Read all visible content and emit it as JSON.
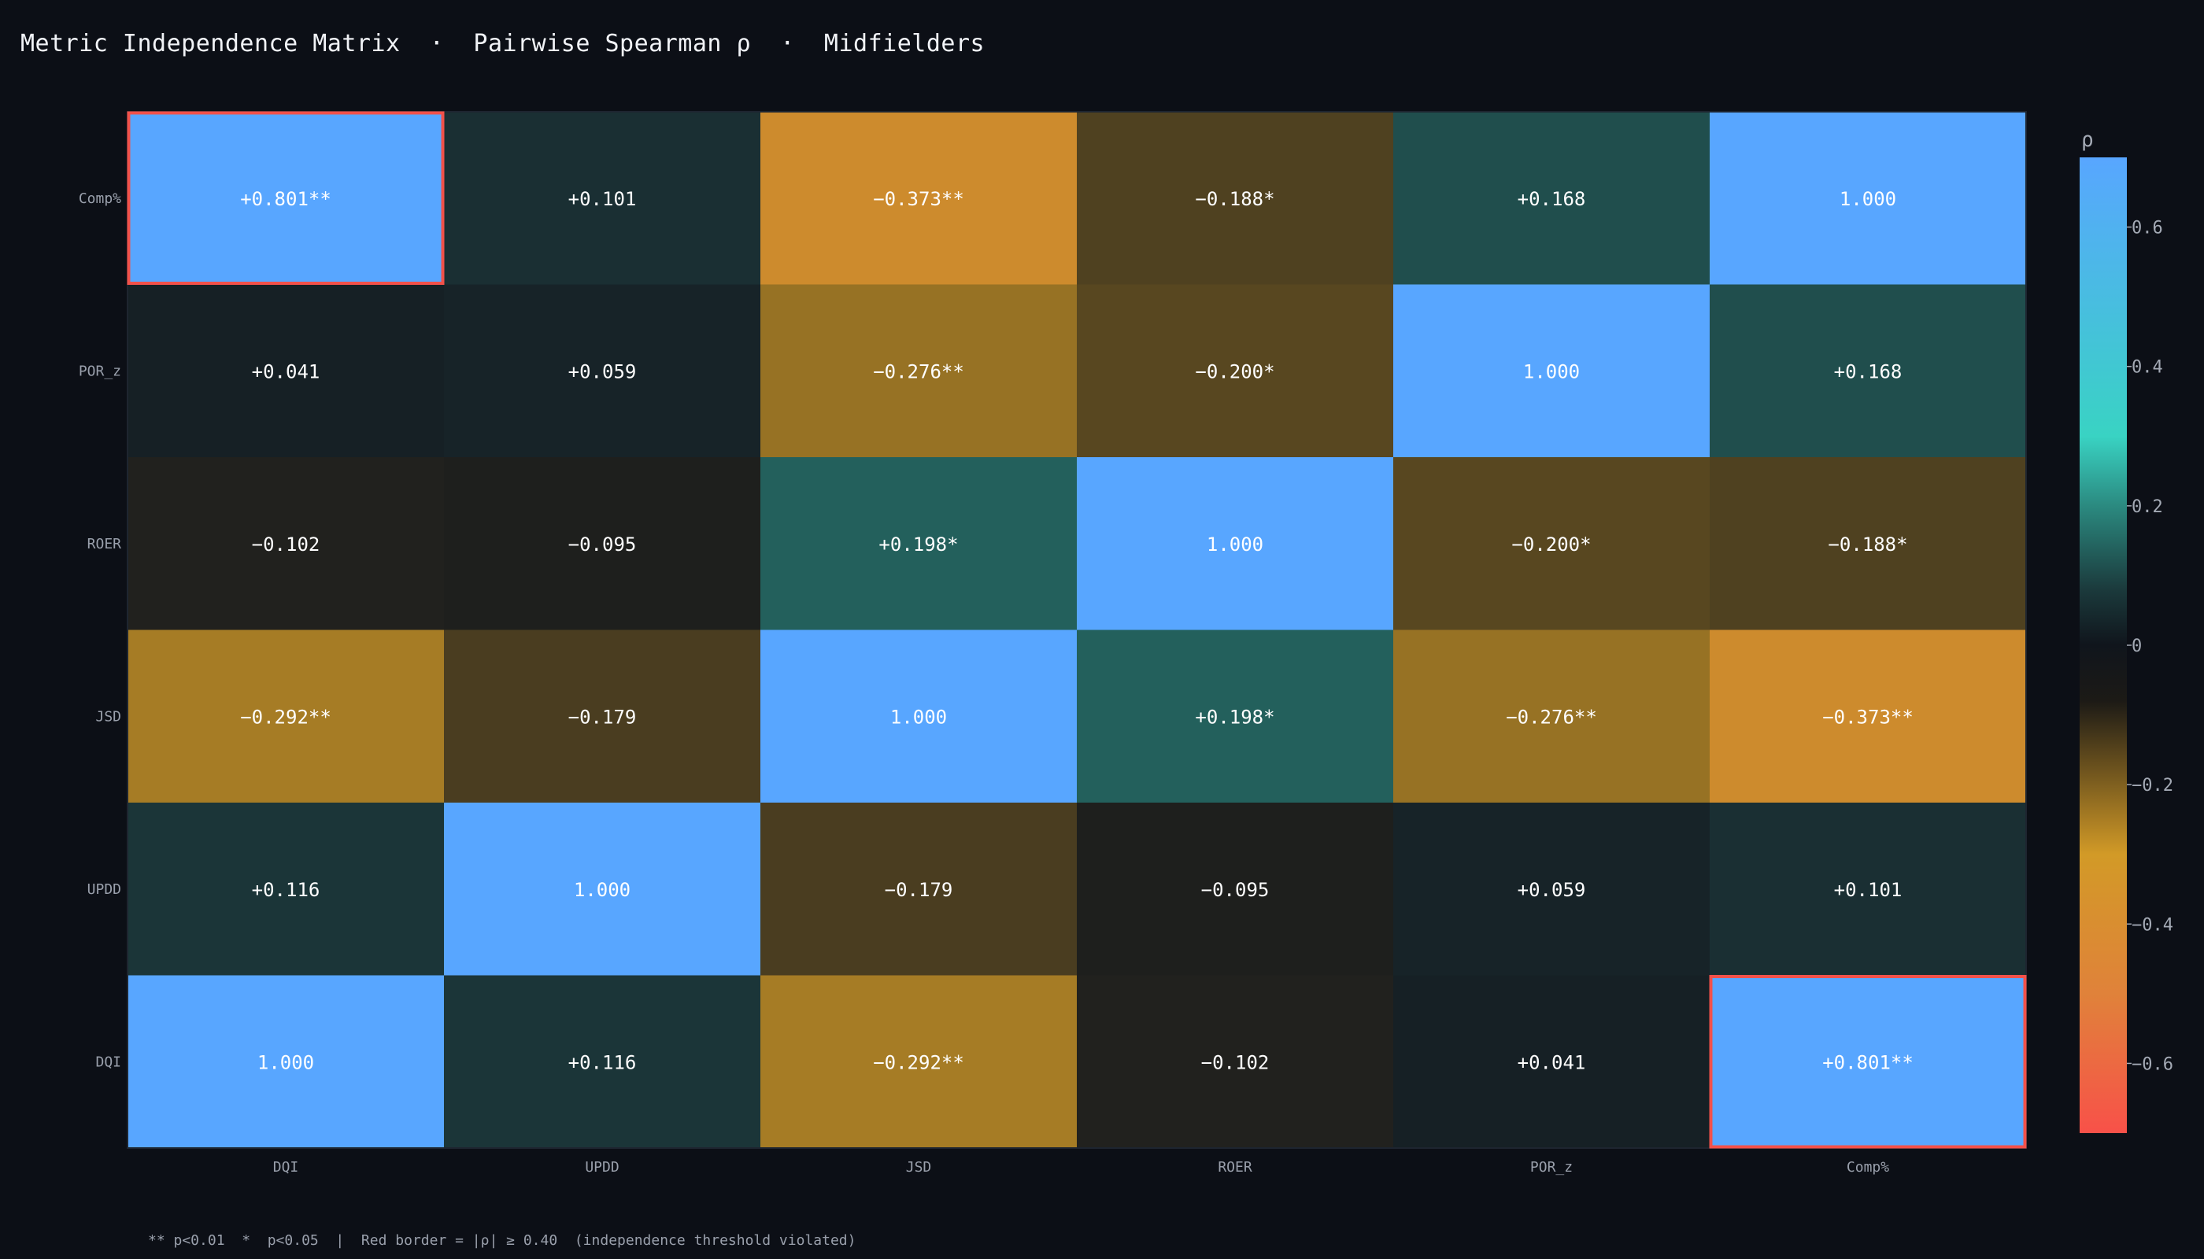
{
  "title": "Metric Independence Matrix  ·  Pairwise Spearman ρ  ·  Midfielders",
  "footnote": "** p<0.01  *  p<0.05  |  Red border = |ρ| ≥ 0.40  (independence threshold violated)",
  "chart_data": {
    "type": "heatmap",
    "title": "Metric Independence Matrix  ·  Pairwise Spearman ρ  ·  Midfielders",
    "x_labels": [
      "DQI",
      "UPDD",
      "JSD",
      "ROER",
      "POR_z",
      "Comp%"
    ],
    "y_labels": [
      "Comp%",
      "POR_z",
      "ROER",
      "JSD",
      "UPDD",
      "DQI"
    ],
    "values": [
      [
        0.801,
        0.101,
        -0.373,
        -0.188,
        0.168,
        1.0
      ],
      [
        0.041,
        0.059,
        -0.276,
        -0.2,
        1.0,
        0.168
      ],
      [
        -0.102,
        -0.095,
        0.198,
        1.0,
        -0.2,
        -0.188
      ],
      [
        -0.292,
        -0.179,
        1.0,
        0.198,
        -0.276,
        -0.373
      ],
      [
        0.116,
        1.0,
        -0.179,
        -0.095,
        0.059,
        0.101
      ],
      [
        1.0,
        0.116,
        -0.292,
        -0.102,
        0.041,
        0.801
      ]
    ],
    "labels": [
      [
        "+0.801**",
        "+0.101",
        "−0.373**",
        "−0.188*",
        "+0.168",
        "1.000"
      ],
      [
        "+0.041",
        "+0.059",
        "−0.276**",
        "−0.200*",
        "1.000",
        "+0.168"
      ],
      [
        "−0.102",
        "−0.095",
        "+0.198*",
        "1.000",
        "−0.200*",
        "−0.188*"
      ],
      [
        "−0.292**",
        "−0.179",
        "1.000",
        "+0.198*",
        "−0.276**",
        "−0.373**"
      ],
      [
        "+0.116",
        "1.000",
        "−0.179",
        "−0.095",
        "+0.059",
        "+0.101"
      ],
      [
        "1.000",
        "+0.116",
        "−0.292**",
        "−0.102",
        "+0.041",
        "+0.801**"
      ]
    ],
    "highlight_threshold": 0.4,
    "colorbar": {
      "label": "ρ",
      "range": [
        -0.7,
        0.7
      ],
      "ticks": [
        -0.6,
        -0.4,
        -0.2,
        0,
        0.2,
        0.4,
        0.6
      ],
      "tick_labels": [
        "−0.6",
        "−0.4",
        "−0.2",
        "0",
        "0.2",
        "0.4",
        "0.6"
      ]
    },
    "colors": {
      "diagonal": "#58a6ff",
      "highlight_border": "#f2514a",
      "scale": [
        "#f85149",
        "#e0823a",
        "#d29a27",
        "#1c1a16",
        "#10151c",
        "#1b3a3c",
        "#2b8a80",
        "#39d3c3",
        "#58a6ff"
      ]
    }
  }
}
